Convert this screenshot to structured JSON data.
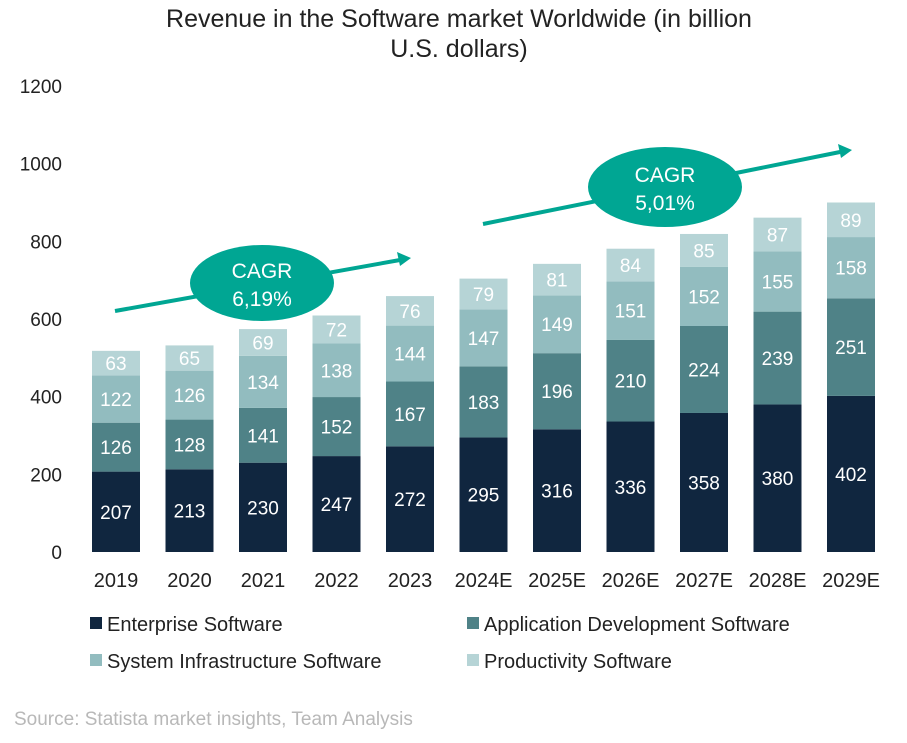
{
  "chart_data": {
    "type": "bar",
    "stacked": true,
    "title_lines": [
      "Revenue in the Software market Worldwide (in billion",
      "U.S. dollars)"
    ],
    "xlabel": "",
    "ylabel": "",
    "ylim": [
      0,
      1200
    ],
    "yticks": [
      0,
      200,
      400,
      600,
      800,
      1000,
      1200
    ],
    "grid": false,
    "categories": [
      "2019",
      "2020",
      "2021",
      "2022",
      "2023",
      "2024E",
      "2025E",
      "2026E",
      "2027E",
      "2028E",
      "2029E"
    ],
    "series": [
      {
        "name": "Enterprise Software",
        "color": "#10263f",
        "values": [
          207,
          213,
          230,
          247,
          272,
          295,
          316,
          336,
          358,
          380,
          402
        ]
      },
      {
        "name": "Application Development Software",
        "color": "#4f8287",
        "values": [
          126,
          128,
          141,
          152,
          167,
          183,
          196,
          210,
          224,
          239,
          251
        ]
      },
      {
        "name": "System Infrastructure Software",
        "color": "#92bcbf",
        "values": [
          122,
          126,
          134,
          138,
          144,
          147,
          149,
          151,
          152,
          155,
          158
        ]
      },
      {
        "name": "Productivity Software",
        "color": "#b6d4d6",
        "values": [
          63,
          65,
          69,
          72,
          76,
          79,
          81,
          84,
          85,
          87,
          89
        ]
      }
    ],
    "legend_placement": "bottom",
    "annotations": [
      {
        "label": "CAGR",
        "value": "6,19%",
        "color": "#00a693"
      },
      {
        "label": "CAGR",
        "value": "5,01%",
        "color": "#00a693"
      }
    ],
    "source": "Source: Statista market insights,  Team Analysis"
  }
}
